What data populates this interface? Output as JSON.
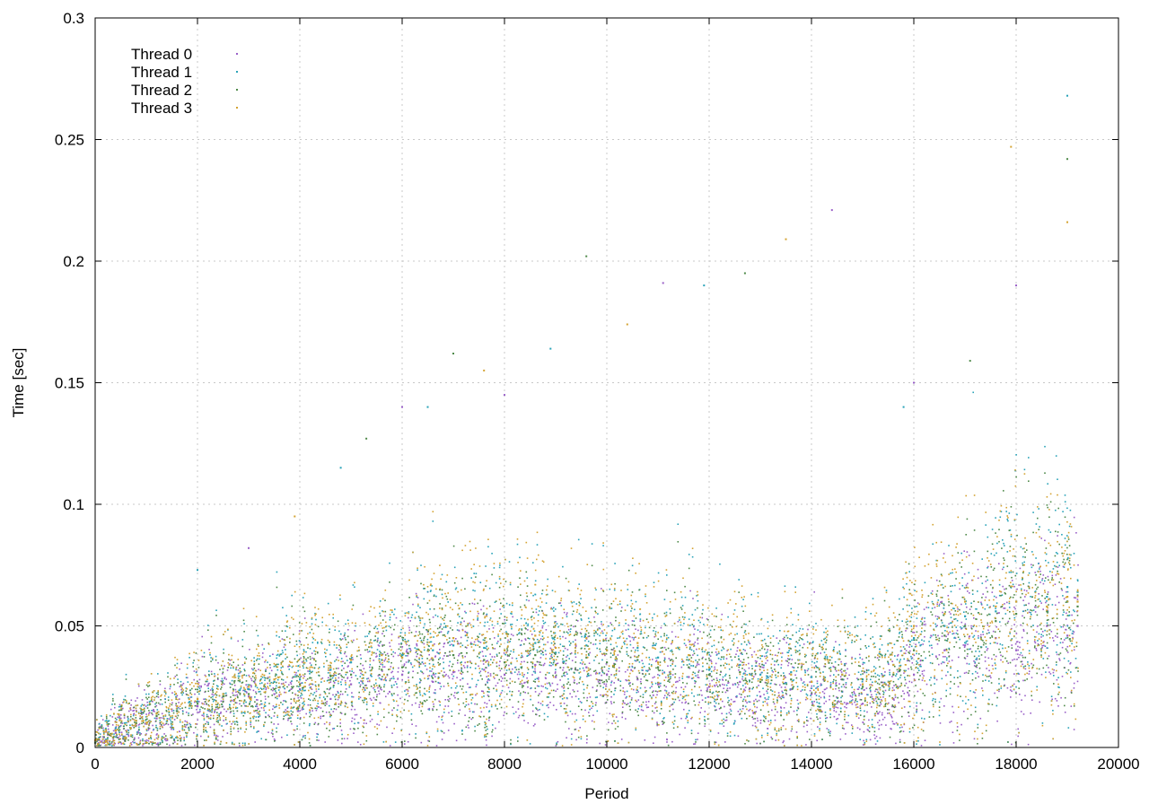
{
  "chart_data": {
    "type": "scatter",
    "title": "",
    "xlabel": "Period",
    "ylabel": "Time [sec]",
    "xlim": [
      0,
      20000
    ],
    "ylim": [
      0,
      0.3
    ],
    "xticks": [
      0,
      2000,
      4000,
      6000,
      8000,
      10000,
      12000,
      14000,
      16000,
      18000,
      20000
    ],
    "xtick_labels": [
      "0",
      "2000",
      "4000",
      "6000",
      "8000",
      "10000",
      "12000",
      "14000",
      "16000",
      "18000",
      "20000"
    ],
    "yticks": [
      0,
      0.05,
      0.1,
      0.15,
      0.2,
      0.25,
      0.3
    ],
    "ytick_labels": [
      "0",
      "0.05",
      "0.1",
      "0.15",
      "0.2",
      "0.25",
      "0.3"
    ],
    "grid": true,
    "legend_position": "top-left",
    "series": [
      {
        "name": "Thread 0",
        "color": "#9a60c8",
        "x": [
          0,
          400,
          800,
          1200,
          1600,
          2000,
          2500,
          3000,
          3500,
          4000,
          4600,
          5000,
          5600,
          6000,
          6600,
          7000,
          7600,
          8000,
          8600,
          9000,
          9600,
          10000,
          10600,
          11000,
          11600,
          12000,
          12600,
          13000,
          13600,
          14000,
          14600,
          15000,
          15300,
          15600,
          16000,
          16600,
          17000,
          17600,
          18000,
          18600,
          19000,
          19200
        ],
        "y": [
          0.002,
          0.006,
          0.009,
          0.012,
          0.015,
          0.017,
          0.019,
          0.021,
          0.022,
          0.024,
          0.02,
          0.026,
          0.028,
          0.03,
          0.027,
          0.031,
          0.032,
          0.03,
          0.034,
          0.029,
          0.033,
          0.03,
          0.028,
          0.026,
          0.029,
          0.025,
          0.027,
          0.021,
          0.024,
          0.022,
          0.023,
          0.018,
          0.014,
          0.02,
          0.03,
          0.04,
          0.042,
          0.045,
          0.04,
          0.05,
          0.046,
          0.05
        ]
      },
      {
        "name": "Thread 1",
        "color": "#2aa3b8",
        "x": [
          0,
          400,
          800,
          1200,
          1600,
          2000,
          2500,
          3000,
          3500,
          4000,
          4600,
          5000,
          5600,
          6000,
          6600,
          7000,
          7600,
          8000,
          8600,
          9000,
          9600,
          10000,
          10600,
          11000,
          11600,
          12000,
          12600,
          13000,
          13600,
          14000,
          14600,
          15000,
          15600,
          16000,
          16600,
          17000,
          17600,
          18000,
          18600,
          19000,
          19200
        ],
        "y": [
          0.003,
          0.008,
          0.011,
          0.014,
          0.016,
          0.019,
          0.022,
          0.024,
          0.027,
          0.028,
          0.032,
          0.035,
          0.036,
          0.038,
          0.04,
          0.042,
          0.041,
          0.04,
          0.043,
          0.039,
          0.042,
          0.04,
          0.041,
          0.037,
          0.036,
          0.032,
          0.034,
          0.03,
          0.031,
          0.029,
          0.03,
          0.028,
          0.034,
          0.045,
          0.05,
          0.054,
          0.056,
          0.06,
          0.062,
          0.066,
          0.064
        ]
      },
      {
        "name": "Thread 2",
        "color": "#4f8a4a",
        "x": [
          0,
          400,
          800,
          1200,
          1600,
          2000,
          2500,
          3000,
          3500,
          4000,
          4600,
          5000,
          5600,
          6000,
          6600,
          7000,
          7600,
          8000,
          8600,
          9000,
          9600,
          10000,
          10600,
          11000,
          11600,
          12000,
          12600,
          13000,
          13600,
          14000,
          14600,
          15000,
          15600,
          16000,
          16600,
          17000,
          17600,
          18000,
          18600,
          19000,
          19200
        ],
        "y": [
          0.002,
          0.007,
          0.01,
          0.013,
          0.015,
          0.018,
          0.021,
          0.022,
          0.024,
          0.026,
          0.028,
          0.03,
          0.032,
          0.033,
          0.036,
          0.038,
          0.036,
          0.035,
          0.038,
          0.034,
          0.037,
          0.035,
          0.036,
          0.033,
          0.033,
          0.03,
          0.031,
          0.027,
          0.028,
          0.027,
          0.028,
          0.025,
          0.03,
          0.04,
          0.046,
          0.05,
          0.052,
          0.055,
          0.056,
          0.06,
          0.058
        ]
      },
      {
        "name": "Thread 3",
        "color": "#d4a332",
        "x": [
          0,
          400,
          800,
          1200,
          1600,
          2000,
          2500,
          3000,
          3500,
          4000,
          4600,
          5000,
          5600,
          6000,
          6600,
          7000,
          7600,
          8000,
          8600,
          9000,
          9600,
          10000,
          10600,
          11000,
          11600,
          12000,
          12600,
          13000,
          13600,
          14000,
          14600,
          15000,
          15600,
          16000,
          16600,
          17000,
          17600,
          18000,
          18600,
          19000,
          19200
        ],
        "y": [
          0.003,
          0.007,
          0.011,
          0.014,
          0.017,
          0.02,
          0.022,
          0.025,
          0.028,
          0.03,
          0.033,
          0.036,
          0.038,
          0.037,
          0.042,
          0.045,
          0.043,
          0.04,
          0.046,
          0.041,
          0.045,
          0.04,
          0.043,
          0.035,
          0.038,
          0.033,
          0.04,
          0.028,
          0.03,
          0.027,
          0.03,
          0.026,
          0.034,
          0.05,
          0.055,
          0.06,
          0.058,
          0.06,
          0.058,
          0.062,
          0.06
        ]
      }
    ],
    "outliers": {
      "x": [
        6000,
        6500,
        7000,
        7600,
        8000,
        8900,
        9600,
        10400,
        11100,
        11900,
        12700,
        13500,
        14400,
        15800,
        17100,
        17900,
        18000,
        19000,
        19000,
        19000,
        16000,
        4800,
        5300,
        3900,
        3000,
        2000
      ],
      "y": [
        0.14,
        0.14,
        0.162,
        0.155,
        0.145,
        0.164,
        0.202,
        0.174,
        0.191,
        0.19,
        0.195,
        0.209,
        0.221,
        0.14,
        0.159,
        0.247,
        0.19,
        0.268,
        0.242,
        0.216,
        0.15,
        0.115,
        0.127,
        0.095,
        0.082,
        0.073
      ]
    }
  }
}
